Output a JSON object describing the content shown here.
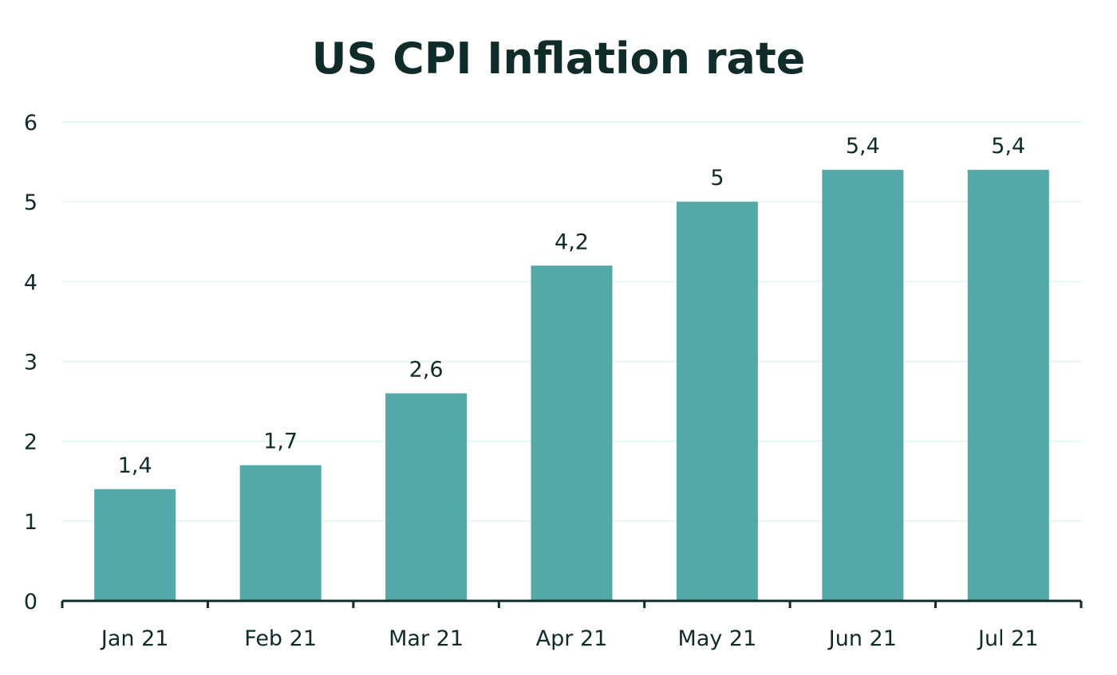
{
  "chart_data": {
    "type": "bar",
    "title": "US CPI Inflation rate",
    "xlabel": "",
    "ylabel": "",
    "categories": [
      "Jan 21",
      "Feb 21",
      "Mar 21",
      "Apr 21",
      "May 21",
      "Jun 21",
      "Jul 21"
    ],
    "values": [
      1.4,
      1.7,
      2.6,
      4.2,
      5,
      5.4,
      5.4
    ],
    "value_labels": [
      "1,4",
      "1,7",
      "2,6",
      "4,2",
      "5",
      "5,4",
      "5,4"
    ],
    "y_ticks": [
      "0",
      "1",
      "2",
      "3",
      "4",
      "5",
      "6"
    ],
    "ylim": [
      0,
      6
    ],
    "grid": true,
    "legend": "none",
    "colors": {
      "bar": "#52a9a8",
      "gridline": "#e8f6f3",
      "axis": "#0f2b2a",
      "text": "#0f2b2a"
    }
  }
}
